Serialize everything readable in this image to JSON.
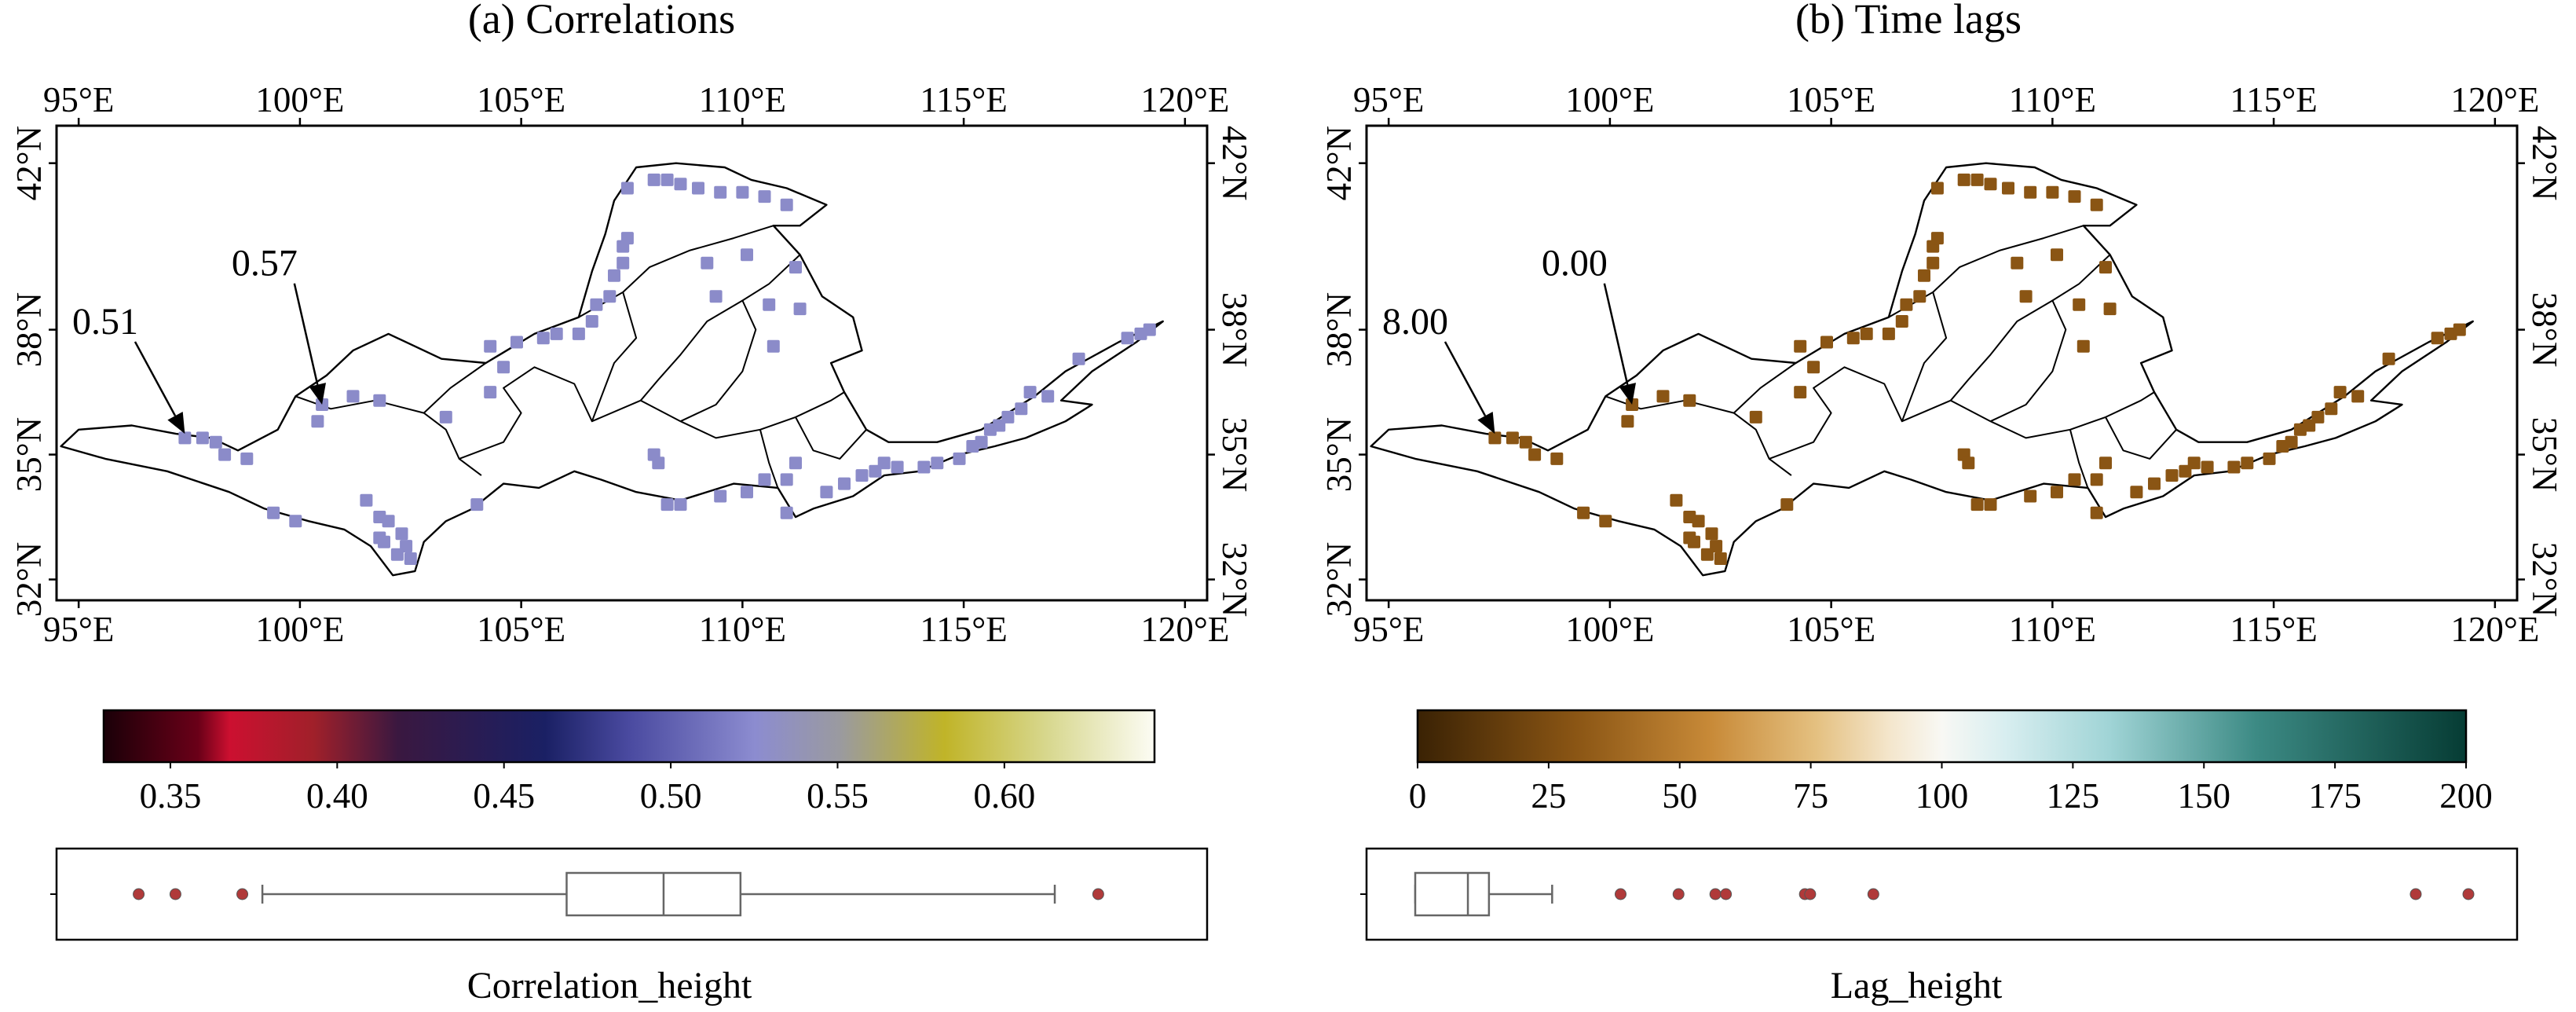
{
  "panels": [
    {
      "title": "(a) Correlations",
      "lon_ticks": [
        "95°E",
        "100°E",
        "105°E",
        "110°E",
        "115°E",
        "120°E"
      ],
      "lat_ticks": [
        "32°N",
        "35°N",
        "38°N",
        "42°N"
      ],
      "point_color": "#8b8bc9",
      "annotations": [
        {
          "text": "0.51",
          "lon": 97.4,
          "lat": 35.5,
          "label_lon": 95.6,
          "label_lat": 37.9
        },
        {
          "text": "0.57",
          "lon": 100.5,
          "lat": 36.2,
          "label_lon": 99.2,
          "label_lat": 39.3
        }
      ],
      "colorbar": {
        "name": "twilight-like",
        "ticks": [
          "0.35",
          "0.40",
          "0.45",
          "0.50",
          "0.55",
          "0.60"
        ],
        "tick_values": [
          0.35,
          0.4,
          0.45,
          0.5,
          0.55,
          0.6
        ],
        "range": [
          0.33,
          0.645
        ],
        "stops": [
          [
            0.0,
            "#1a0008"
          ],
          [
            0.09,
            "#6a0018"
          ],
          [
            0.12,
            "#cc1030"
          ],
          [
            0.2,
            "#a0202a"
          ],
          [
            0.28,
            "#3a1840"
          ],
          [
            0.42,
            "#1a2064"
          ],
          [
            0.5,
            "#4a4aa0"
          ],
          [
            0.62,
            "#8c8cd0"
          ],
          [
            0.7,
            "#9a9aa0"
          ],
          [
            0.8,
            "#c0b428"
          ],
          [
            0.9,
            "#d8d890"
          ],
          [
            1.0,
            "#fcfcf4"
          ]
        ]
      },
      "boxplot": {
        "xlabel": "Correlation_height",
        "range": [
          0.33,
          0.645
        ],
        "whisker_low": 0.377,
        "q1": 0.468,
        "median": 0.497,
        "q3": 0.52,
        "whisker_high": 0.614,
        "box_color": "#666666",
        "outliers": [
          0.34,
          0.351,
          0.371,
          0.627
        ],
        "outlier_color": "#b03a3a"
      }
    },
    {
      "title": "(b) Time lags",
      "lon_ticks": [
        "95°E",
        "100°E",
        "105°E",
        "110°E",
        "115°E",
        "120°E"
      ],
      "lat_ticks": [
        "32°N",
        "35°N",
        "38°N",
        "42°N"
      ],
      "point_color": "#8a5514",
      "annotations": [
        {
          "text": "8.00",
          "lon": 97.4,
          "lat": 35.5,
          "label_lon": 95.6,
          "label_lat": 37.9
        },
        {
          "text": "0.00",
          "lon": 100.5,
          "lat": 36.2,
          "label_lon": 99.2,
          "label_lat": 39.3
        }
      ],
      "colorbar": {
        "name": "BrBG-like",
        "ticks": [
          "0",
          "25",
          "50",
          "75",
          "100",
          "125",
          "150",
          "175",
          "200"
        ],
        "tick_values": [
          0,
          25,
          50,
          75,
          100,
          125,
          150,
          175,
          200
        ],
        "range": [
          0,
          200
        ],
        "stops": [
          [
            0.0,
            "#3a2204"
          ],
          [
            0.15,
            "#8a5514"
          ],
          [
            0.28,
            "#c88a38"
          ],
          [
            0.38,
            "#e4c080"
          ],
          [
            0.45,
            "#f4e6cc"
          ],
          [
            0.5,
            "#f8f8f4"
          ],
          [
            0.56,
            "#d8eef0"
          ],
          [
            0.66,
            "#a0d4d6"
          ],
          [
            0.8,
            "#3c8a84"
          ],
          [
            1.0,
            "#063c34"
          ]
        ]
      },
      "boxplot": {
        "xlabel": "Lag_height",
        "range": [
          0,
          200
        ],
        "whisker_low": 0,
        "q1": 0,
        "median": 10,
        "q3": 14,
        "whisker_high": 26,
        "box_color": "#666666",
        "outliers": [
          39,
          50,
          57,
          59,
          74,
          75,
          87,
          190,
          200
        ],
        "outlier_color": "#b03a3a"
      }
    }
  ],
  "points": [
    [
      97.4,
      35.4
    ],
    [
      97.8,
      35.4
    ],
    [
      98.1,
      35.3
    ],
    [
      98.3,
      35.0
    ],
    [
      98.8,
      34.9
    ],
    [
      99.4,
      33.6
    ],
    [
      99.9,
      33.4
    ],
    [
      100.4,
      35.8
    ],
    [
      100.5,
      36.2
    ],
    [
      101.2,
      36.4
    ],
    [
      101.8,
      36.3
    ],
    [
      103.3,
      35.9
    ],
    [
      101.5,
      33.9
    ],
    [
      101.8,
      33.5
    ],
    [
      102.0,
      33.4
    ],
    [
      102.3,
      33.1
    ],
    [
      101.9,
      32.9
    ],
    [
      102.4,
      32.8
    ],
    [
      102.2,
      32.6
    ],
    [
      102.5,
      32.5
    ],
    [
      101.8,
      33.0
    ],
    [
      104.3,
      36.5
    ],
    [
      104.6,
      37.1
    ],
    [
      104.3,
      37.6
    ],
    [
      104.9,
      37.7
    ],
    [
      105.5,
      37.8
    ],
    [
      105.8,
      37.9
    ],
    [
      106.3,
      37.9
    ],
    [
      106.6,
      38.2
    ],
    [
      106.7,
      38.6
    ],
    [
      107.0,
      38.8
    ],
    [
      107.1,
      39.3
    ],
    [
      107.3,
      39.6
    ],
    [
      107.3,
      40.0
    ],
    [
      107.4,
      40.2
    ],
    [
      104.0,
      33.8
    ],
    [
      107.4,
      41.4
    ],
    [
      108.0,
      41.6
    ],
    [
      108.3,
      41.6
    ],
    [
      108.6,
      41.5
    ],
    [
      109.0,
      41.4
    ],
    [
      109.5,
      41.3
    ],
    [
      110.0,
      41.3
    ],
    [
      110.5,
      41.2
    ],
    [
      111.0,
      41.0
    ],
    [
      109.2,
      39.6
    ],
    [
      110.1,
      39.8
    ],
    [
      111.2,
      39.5
    ],
    [
      109.4,
      38.8
    ],
    [
      110.6,
      38.6
    ],
    [
      111.3,
      38.5
    ],
    [
      110.7,
      37.6
    ],
    [
      108.0,
      35.0
    ],
    [
      108.1,
      34.8
    ],
    [
      108.3,
      33.8
    ],
    [
      108.6,
      33.8
    ],
    [
      109.5,
      34.0
    ],
    [
      110.1,
      34.1
    ],
    [
      110.5,
      34.4
    ],
    [
      111.0,
      34.4
    ],
    [
      111.2,
      34.8
    ],
    [
      111.0,
      33.6
    ],
    [
      111.9,
      34.1
    ],
    [
      112.3,
      34.3
    ],
    [
      112.7,
      34.5
    ],
    [
      113.0,
      34.6
    ],
    [
      113.2,
      34.8
    ],
    [
      113.5,
      34.7
    ],
    [
      114.1,
      34.7
    ],
    [
      114.4,
      34.8
    ],
    [
      114.9,
      34.9
    ],
    [
      115.2,
      35.2
    ],
    [
      115.4,
      35.3
    ],
    [
      115.6,
      35.6
    ],
    [
      115.8,
      35.7
    ],
    [
      116.0,
      35.9
    ],
    [
      116.3,
      36.1
    ],
    [
      116.5,
      36.5
    ],
    [
      116.9,
      36.4
    ],
    [
      117.6,
      37.3
    ],
    [
      118.7,
      37.8
    ],
    [
      119.0,
      37.9
    ],
    [
      119.2,
      38.0
    ]
  ]
}
